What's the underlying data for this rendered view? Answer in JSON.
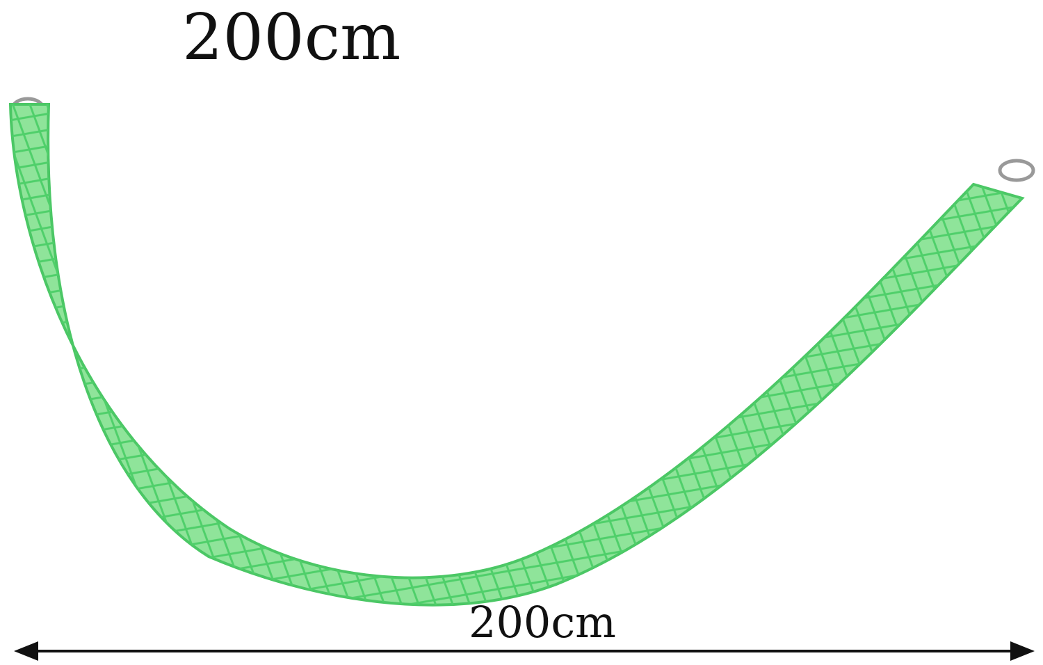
{
  "title": "200cm",
  "dimension_label": "200cm"
}
